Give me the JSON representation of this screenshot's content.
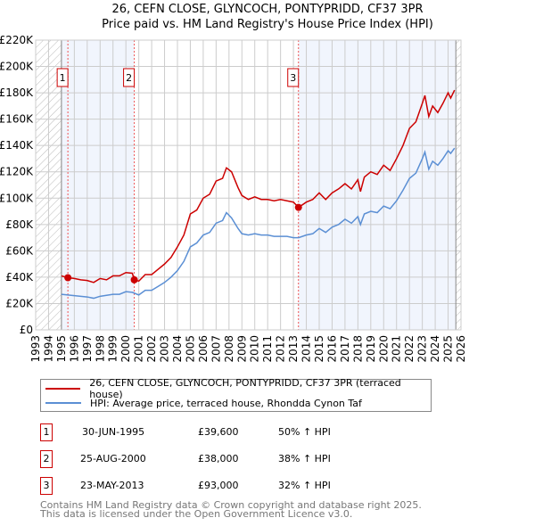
{
  "chart_data": {
    "type": "line",
    "title": "26, CEFN CLOSE, GLYNCOCH, PONTYPRIDD, CF37 3PR",
    "subtitle": "Price paid vs. HM Land Registry's House Price Index (HPI)",
    "xlim": [
      1993,
      2026
    ],
    "ylim": [
      0,
      220000
    ],
    "x_ticks": [
      "1993",
      "1994",
      "1995",
      "1996",
      "1997",
      "1998",
      "1999",
      "2000",
      "2001",
      "2002",
      "2003",
      "2004",
      "2005",
      "2006",
      "2007",
      "2008",
      "2009",
      "2010",
      "2011",
      "2012",
      "2013",
      "2014",
      "2015",
      "2016",
      "2017",
      "2018",
      "2019",
      "2020",
      "2021",
      "2022",
      "2023",
      "2024",
      "2025",
      "2026"
    ],
    "y_ticks": [
      {
        "v": 0,
        "l": "£0"
      },
      {
        "v": 20000,
        "l": "£20K"
      },
      {
        "v": 40000,
        "l": "£40K"
      },
      {
        "v": 60000,
        "l": "£60K"
      },
      {
        "v": 80000,
        "l": "£80K"
      },
      {
        "v": 100000,
        "l": "£100K"
      },
      {
        "v": 120000,
        "l": "£120K"
      },
      {
        "v": 140000,
        "l": "£140K"
      },
      {
        "v": 160000,
        "l": "£160K"
      },
      {
        "v": 180000,
        "l": "£180K"
      },
      {
        "v": 200000,
        "l": "£200K"
      },
      {
        "v": 220000,
        "l": "£220K"
      }
    ],
    "grid": true,
    "series": [
      {
        "name": "26, CEFN CLOSE, GLYNCOCH, PONTYPRIDD, CF37 3PR (terraced house)",
        "color": "#cc0000",
        "x": [
          1995,
          1995.5,
          1996,
          1996.5,
          1997,
          1997.5,
          1998,
          1998.5,
          1999,
          1999.5,
          2000,
          2000.5,
          2000.65,
          2001,
          2001.5,
          2002,
          2002.5,
          2003,
          2003.5,
          2004,
          2004.5,
          2005,
          2005.5,
          2006,
          2006.5,
          2007,
          2007.5,
          2007.8,
          2008.2,
          2008.7,
          2009,
          2009.5,
          2010,
          2010.5,
          2011,
          2011.5,
          2012,
          2012.5,
          2013,
          2013.4,
          2014,
          2014.5,
          2015,
          2015.5,
          2016,
          2016.5,
          2017,
          2017.5,
          2018,
          2018.2,
          2018.5,
          2019,
          2019.5,
          2020,
          2020.5,
          2021,
          2021.5,
          2022,
          2022.5,
          2023,
          2023.2,
          2023.5,
          2023.8,
          2024.2,
          2024.6,
          2025,
          2025.2,
          2025.5
        ],
        "y": [
          41000,
          39600,
          39000,
          38000,
          37500,
          36000,
          39000,
          38000,
          41000,
          41000,
          43500,
          43000,
          38000,
          37000,
          42000,
          42000,
          46000,
          50000,
          55000,
          63000,
          72000,
          88000,
          91000,
          100000,
          103000,
          113000,
          115000,
          123000,
          120000,
          108000,
          102000,
          99000,
          101000,
          99000,
          99000,
          98000,
          99000,
          98000,
          97000,
          93000,
          97000,
          99000,
          104000,
          99000,
          104000,
          107000,
          111000,
          107000,
          114000,
          105000,
          116000,
          120000,
          118000,
          125000,
          121000,
          130000,
          140000,
          153000,
          158000,
          172000,
          178000,
          162000,
          170000,
          165000,
          172000,
          180000,
          176000,
          182000
        ]
      },
      {
        "name": "HPI: Average price, terraced house, Rhondda Cynon Taf",
        "color": "#5b8fd4",
        "x": [
          1995,
          1995.5,
          1996,
          1997,
          1997.5,
          1998,
          1999,
          1999.5,
          2000,
          2000.5,
          2001,
          2001.5,
          2002,
          2002.5,
          2003,
          2003.5,
          2004,
          2004.5,
          2005,
          2005.5,
          2006,
          2006.5,
          2007,
          2007.5,
          2007.8,
          2008.2,
          2008.7,
          2009,
          2009.5,
          2010,
          2010.5,
          2011,
          2011.5,
          2012,
          2012.5,
          2013,
          2013.4,
          2014,
          2014.5,
          2015,
          2015.5,
          2016,
          2016.5,
          2017,
          2017.5,
          2018,
          2018.2,
          2018.5,
          2019,
          2019.5,
          2020,
          2020.5,
          2021,
          2021.5,
          2022,
          2022.5,
          2023,
          2023.2,
          2023.5,
          2023.8,
          2024.2,
          2024.6,
          2025,
          2025.2,
          2025.5
        ],
        "y": [
          27000,
          26500,
          26000,
          25000,
          24000,
          25500,
          27000,
          27000,
          29000,
          28500,
          26500,
          30000,
          30000,
          33000,
          36000,
          40000,
          45000,
          52000,
          63000,
          66000,
          72000,
          74000,
          81000,
          83000,
          89000,
          85000,
          77000,
          73000,
          72000,
          73000,
          72000,
          72000,
          71000,
          71000,
          71000,
          70000,
          70000,
          72000,
          73000,
          77000,
          74000,
          78000,
          80000,
          84000,
          81000,
          86000,
          80000,
          88000,
          90000,
          89000,
          94000,
          92000,
          98000,
          106000,
          115000,
          119000,
          130000,
          135000,
          122000,
          128000,
          125000,
          130000,
          136000,
          134000,
          138000
        ]
      }
    ],
    "sales": [
      {
        "n": "1",
        "x": 1995.5,
        "y": 39600
      },
      {
        "n": "2",
        "x": 2000.65,
        "y": 38000
      },
      {
        "n": "3",
        "x": 2013.39,
        "y": 93000
      }
    ]
  },
  "legend": {
    "red": "26, CEFN CLOSE, GLYNCOCH, PONTYPRIDD, CF37 3PR (terraced house)",
    "blue": "HPI: Average price, terraced house, Rhondda Cynon Taf"
  },
  "table": [
    {
      "n": "1",
      "date": "30-JUN-1995",
      "price": "£39,600",
      "hpi": "50% ↑ HPI"
    },
    {
      "n": "2",
      "date": "25-AUG-2000",
      "price": "£38,000",
      "hpi": "38% ↑ HPI"
    },
    {
      "n": "3",
      "date": "23-MAY-2013",
      "price": "£93,000",
      "hpi": "32% ↑ HPI"
    }
  ],
  "footer": {
    "line1": "Contains HM Land Registry data © Crown copyright and database right 2025.",
    "line2": "This data is licensed under the Open Government Licence v3.0."
  }
}
